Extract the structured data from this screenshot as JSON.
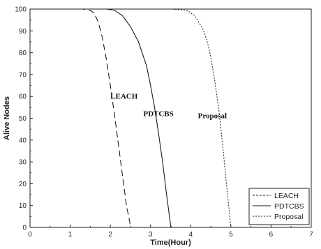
{
  "chart_data": {
    "type": "line",
    "title": "",
    "xlabel": "Time(Hour)",
    "ylabel": "Alive Nodes",
    "xlim": [
      0,
      7
    ],
    "ylim": [
      0,
      100
    ],
    "xticks": [
      0,
      1,
      2,
      3,
      4,
      5,
      6,
      7
    ],
    "yticks": [
      0,
      10,
      20,
      30,
      40,
      50,
      60,
      70,
      80,
      90,
      100
    ],
    "grid": false,
    "legend": "bottom-right",
    "series": [
      {
        "name": "LEACH",
        "style": "dashed",
        "annotation": "LEACH",
        "x": [
          0,
          1.3,
          1.5,
          1.6,
          1.7,
          1.8,
          1.9,
          2.0,
          2.1,
          2.2,
          2.3,
          2.4,
          2.5,
          2.55
        ],
        "y": [
          100,
          100,
          99.5,
          98,
          94,
          87,
          77,
          65,
          52,
          38,
          24,
          10,
          1,
          0
        ]
      },
      {
        "name": "PDTCBS",
        "style": "solid",
        "annotation": "PDTCBS",
        "x": [
          0,
          1.9,
          2.1,
          2.3,
          2.5,
          2.7,
          2.9,
          3.0,
          3.1,
          3.2,
          3.3,
          3.4,
          3.5,
          3.52
        ],
        "y": [
          100,
          100,
          99.5,
          97,
          92,
          85,
          74,
          65,
          55,
          43,
          30,
          15,
          1,
          0
        ]
      },
      {
        "name": "Proposal",
        "style": "dotted",
        "annotation": "Proposal",
        "x": [
          0,
          3.5,
          3.9,
          4.1,
          4.3,
          4.4,
          4.5,
          4.6,
          4.7,
          4.8,
          4.9,
          5.0
        ],
        "y": [
          100,
          100,
          99.5,
          97,
          91,
          86,
          78,
          67,
          54,
          37,
          18,
          0
        ]
      }
    ]
  }
}
